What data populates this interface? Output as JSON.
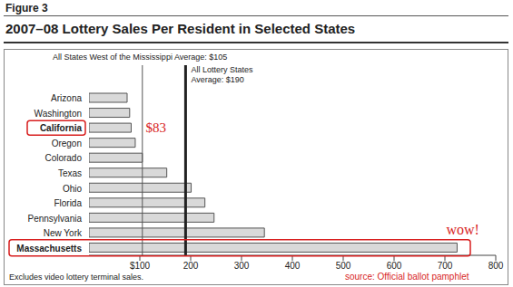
{
  "chart_data": {
    "type": "bar",
    "orientation": "horizontal",
    "figure_label": "Figure 3",
    "title": "2007–08 Lottery Sales Per Resident in Selected States",
    "categories": [
      "Arizona",
      "Washington",
      "California",
      "Oregon",
      "Colorado",
      "Texas",
      "Ohio",
      "Florida",
      "Pennsylvania",
      "New York",
      "Massachusetts"
    ],
    "values": [
      75,
      80,
      83,
      91,
      105,
      153,
      201,
      228,
      246,
      345,
      724
    ],
    "color": "#d9d9d9",
    "xlim": [
      0,
      800
    ],
    "xticks": [
      {
        "value": 100,
        "label": "$100"
      },
      200,
      300,
      400,
      500,
      600,
      700,
      800
    ],
    "reference_lines": [
      {
        "value": 105,
        "label": [
          "All States West of the Mississippi Average: $105"
        ]
      },
      {
        "value": 190,
        "label": [
          "All Lottery States",
          "Average: $190"
        ]
      }
    ],
    "annotations": [
      {
        "category": "California",
        "text": "$83"
      },
      {
        "category": "Massachusetts",
        "text": "wow!"
      }
    ],
    "highlighted": [
      "California",
      "Massachusetts"
    ],
    "footnote": "Excludes video lottery terminal sales.",
    "source": "source: Official ballot pamphlet"
  }
}
